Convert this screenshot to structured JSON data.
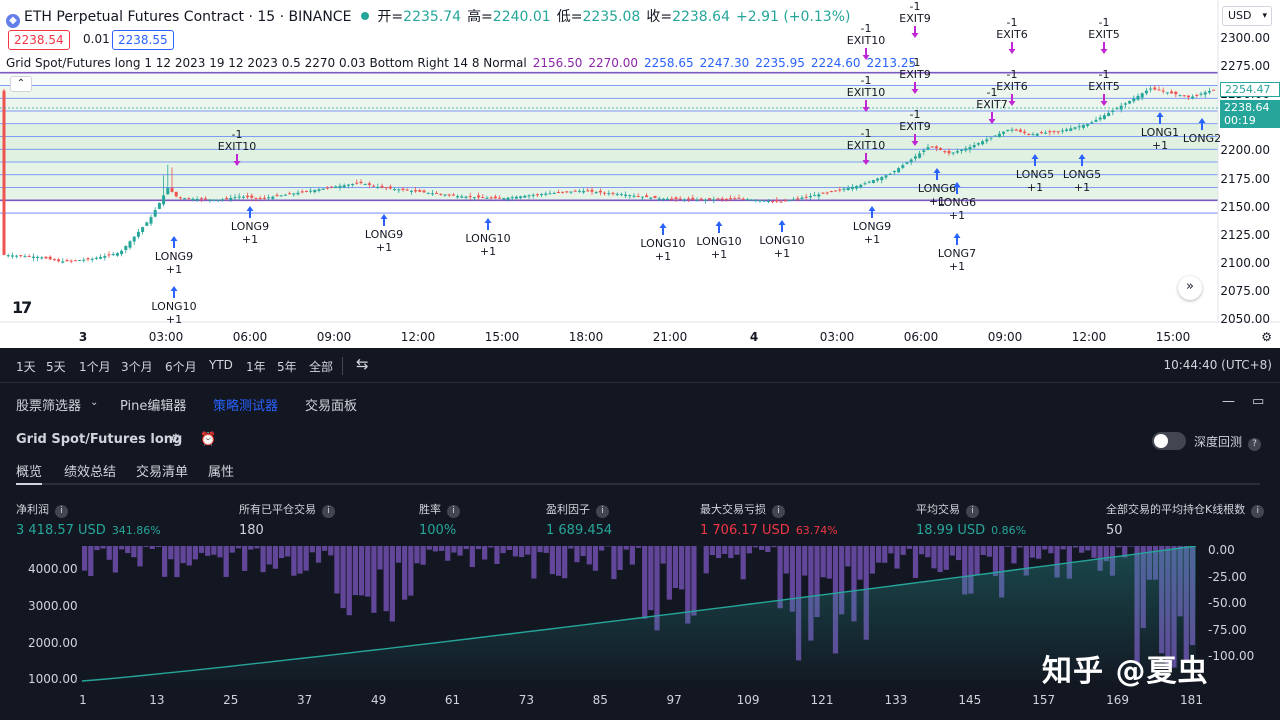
{
  "chart": {
    "symbol": "ETH Perpetual Futures Contract · 15 · BINANCE",
    "ohlc": [
      {
        "k": "开=",
        "v": "2235.74"
      },
      {
        "k": "高=",
        "v": "2240.01"
      },
      {
        "k": "低=",
        "v": "2235.08"
      },
      {
        "k": "收=",
        "v": "2238.64"
      }
    ],
    "change": "+2.91 (+0.13%)",
    "sell_price": "2238.54",
    "spread": "0.01",
    "buy_price": "2238.55",
    "strategy_params": "Grid Spot/Futures long 1 12 2023 19 12 2023 0.5 2270 0.03 Bottom Right 14 8 Normal",
    "grid_levels": [
      {
        "text": "2156.50",
        "c": "purple"
      },
      {
        "text": "2270.00",
        "c": "purple"
      },
      {
        "text": "2258.65",
        "c": "blue"
      },
      {
        "text": "2247.30",
        "c": "blue"
      },
      {
        "text": "2235.95",
        "c": "blue"
      },
      {
        "text": "2224.60",
        "c": "blue"
      },
      {
        "text": "2213.25",
        "c": "blue"
      }
    ],
    "currency": "USD",
    "y_ticks": [
      "2300.00",
      "2275.00",
      "2250.00",
      "2225.00",
      "2200.00",
      "2175.00",
      "2150.00",
      "2125.00",
      "2100.00",
      "2075.00",
      "2050.00"
    ],
    "price_tag_alt": "2254.47",
    "price_tag_current": "2238.64",
    "countdown": "00:19",
    "x_ticks": [
      {
        "label": "3",
        "bold": true
      },
      {
        "label": "03:00"
      },
      {
        "label": "06:00"
      },
      {
        "label": "09:00"
      },
      {
        "label": "12:00"
      },
      {
        "label": "15:00"
      },
      {
        "label": "18:00"
      },
      {
        "label": "21:00"
      },
      {
        "label": "4",
        "bold": true
      },
      {
        "label": "03:00"
      },
      {
        "label": "06:00"
      },
      {
        "label": "09:00"
      },
      {
        "label": "12:00"
      },
      {
        "label": "15:00"
      }
    ],
    "signals_long": [
      {
        "label": "LONG10",
        "qty": "+1"
      },
      {
        "label": "LONG9",
        "qty": "+1"
      },
      {
        "label": "LONG9",
        "qty": "+1"
      },
      {
        "label": "LONG9",
        "qty": "+1"
      },
      {
        "label": "LONG10",
        "qty": "+1"
      },
      {
        "label": "LONG10",
        "qty": "+1"
      },
      {
        "label": "LONG10",
        "qty": "+1"
      },
      {
        "label": "LONG10",
        "qty": "+1"
      },
      {
        "label": "LONG9",
        "qty": "+1"
      },
      {
        "label": "LONG6",
        "qty": "+1"
      },
      {
        "label": "LONG6",
        "qty": "+1"
      },
      {
        "label": "LONG7",
        "qty": "+1"
      },
      {
        "label": "LONG5",
        "qty": "+1"
      },
      {
        "label": "LONG5",
        "qty": "+1"
      },
      {
        "label": "LONG1",
        "qty": "+1"
      },
      {
        "label": "LONG2",
        "qty": ""
      }
    ],
    "signals_exit": [
      {
        "label": "EXIT10",
        "qty": "-1"
      },
      {
        "label": "EXIT10",
        "qty": "-1"
      },
      {
        "label": "EXIT10",
        "qty": "-1"
      },
      {
        "label": "EXIT10",
        "qty": "-1"
      },
      {
        "label": "EXIT9",
        "qty": "-1"
      },
      {
        "label": "EXIT9",
        "qty": "-1"
      },
      {
        "label": "EXIT9",
        "qty": "-1"
      },
      {
        "label": "EXIT7",
        "qty": "-1"
      },
      {
        "label": "EXIT6",
        "qty": "-1"
      },
      {
        "label": "EXIT6",
        "qty": "-1"
      },
      {
        "label": "EXIT5",
        "qty": "-1"
      },
      {
        "label": "EXIT5",
        "qty": "-1"
      }
    ]
  },
  "range_bar": {
    "items": [
      "1天",
      "5天",
      "1个月",
      "3个月",
      "6个月",
      "YTD",
      "1年",
      "5年",
      "全部"
    ],
    "time": "10:44:40 (UTC+8)"
  },
  "panel": {
    "tabs": [
      {
        "label": "股票筛选器",
        "active": false
      },
      {
        "label": "Pine编辑器",
        "active": false
      },
      {
        "label": "策略测试器",
        "active": true
      },
      {
        "label": "交易面板",
        "active": false
      }
    ],
    "strategy_name": "Grid Spot/Futures long",
    "deep_backtest": "深度回测",
    "subtabs": [
      "概览",
      "绩效总结",
      "交易清单",
      "属性"
    ],
    "metrics": [
      {
        "label": "净利润",
        "value": "3 418.57 USD",
        "pct": "341.86%",
        "color": "green",
        "help": true
      },
      {
        "label": "所有已平仓交易",
        "value": "180",
        "pct": "",
        "color": "white",
        "help": true
      },
      {
        "label": "胜率",
        "value": "100%",
        "pct": "",
        "color": "green",
        "help": true
      },
      {
        "label": "盈利因子",
        "value": "1 689.454",
        "pct": "",
        "color": "green",
        "help": true
      },
      {
        "label": "最大交易亏损",
        "value": "1 706.17 USD",
        "pct": "63.74%",
        "color": "red",
        "help": true
      },
      {
        "label": "平均交易",
        "value": "18.99 USD",
        "pct": "0.86%",
        "color": "green",
        "help": true
      },
      {
        "label": "全部交易的平均持仓K线根数",
        "value": "50",
        "pct": "",
        "color": "white",
        "help": true
      }
    ],
    "equity_y_left": [
      "4000.00",
      "3000.00",
      "2000.00",
      "1000.00"
    ],
    "equity_y_right": [
      "0.00",
      "-25.00",
      "-50.00",
      "-75.00",
      "-100.00"
    ],
    "equity_x": [
      "1",
      "13",
      "25",
      "37",
      "49",
      "61",
      "73",
      "85",
      "97",
      "109",
      "121",
      "133",
      "145",
      "157",
      "169",
      "181"
    ],
    "watermark": "知乎 @夏虫"
  },
  "colors": {
    "up": "#26a69a",
    "down": "#ef5350",
    "grid_fill": "#c8e6c9",
    "long_arrow": "#2962ff",
    "exit_arrow": "#c026d3",
    "equity": "#26a69a",
    "drawdown": "#7e57c2"
  }
}
